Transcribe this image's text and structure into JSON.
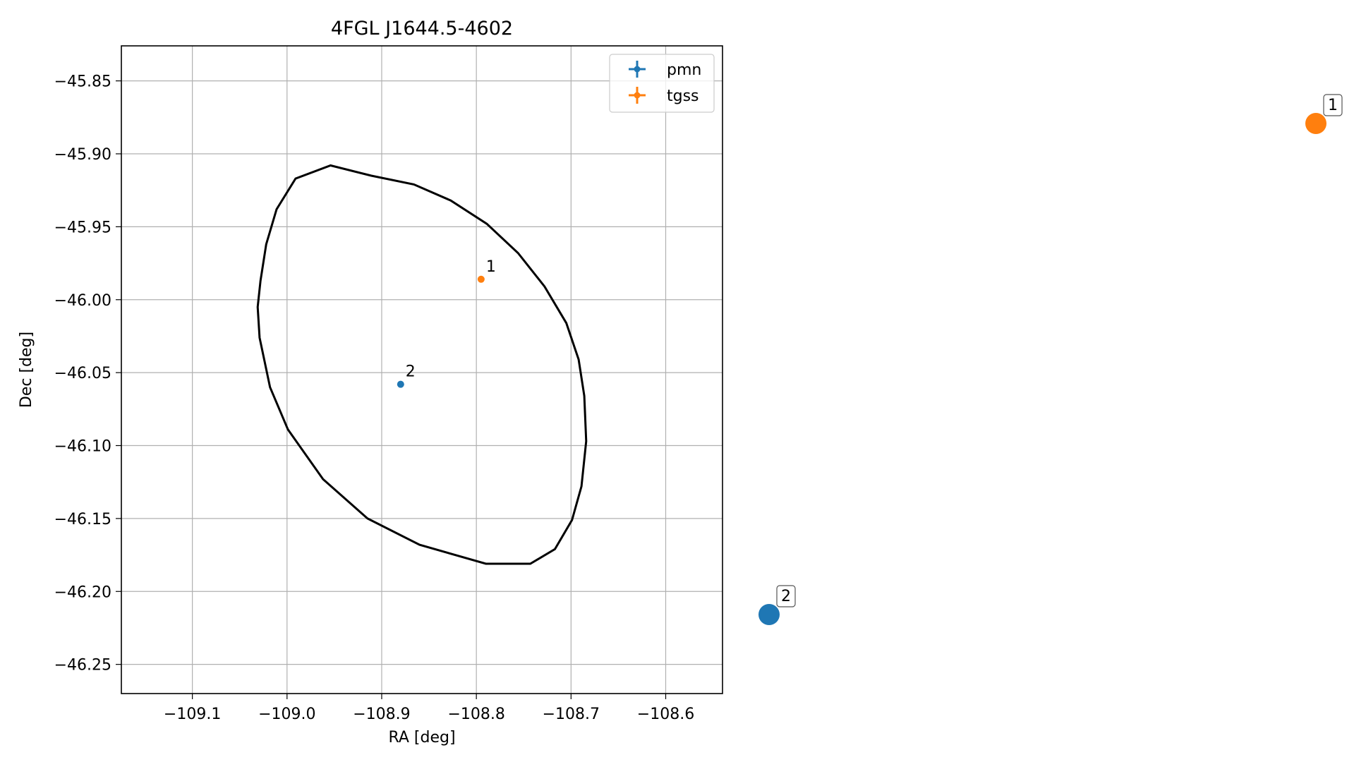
{
  "chart_data": {
    "type": "scatter",
    "title": "4FGL J1644.5-4602",
    "xlabel": "RA [deg]",
    "ylabel": "Dec [deg]",
    "xlim": [
      -109.175,
      -108.54
    ],
    "ylim": [
      -46.27,
      -45.826
    ],
    "xticks": [
      -109.1,
      -109.0,
      -108.9,
      -108.8,
      -108.7,
      -108.6
    ],
    "xtick_labels": [
      "−109.1",
      "−109.0",
      "−108.9",
      "−108.8",
      "−108.7",
      "−108.6"
    ],
    "yticks": [
      -45.85,
      -45.9,
      -45.95,
      -46.0,
      -46.05,
      -46.1,
      -46.15,
      -46.2,
      -46.25
    ],
    "ytick_labels": [
      "−45.85",
      "−45.90",
      "−45.95",
      "−46.00",
      "−46.05",
      "−46.10",
      "−46.15",
      "−46.20",
      "−46.25"
    ],
    "grid": true,
    "legend_position": "top-right",
    "series": [
      {
        "name": "pmn",
        "color": "#1f77b4",
        "points": [
          {
            "x": -108.88,
            "y": -46.058,
            "label": "2"
          }
        ]
      },
      {
        "name": "tgss",
        "color": "#ff7f0e",
        "points": [
          {
            "x": -108.795,
            "y": -45.986,
            "label": "1"
          }
        ]
      }
    ],
    "ellipse": {
      "color": "#000000",
      "points": [
        [
          -108.911,
          -45.915
        ],
        [
          -108.866,
          -45.921
        ],
        [
          -108.827,
          -45.932
        ],
        [
          -108.789,
          -45.948
        ],
        [
          -108.756,
          -45.968
        ],
        [
          -108.728,
          -45.991
        ],
        [
          -108.705,
          -46.016
        ],
        [
          -108.692,
          -46.041
        ],
        [
          -108.686,
          -46.066
        ],
        [
          -108.684,
          -46.097
        ],
        [
          -108.689,
          -46.128
        ],
        [
          -108.699,
          -46.151
        ],
        [
          -108.717,
          -46.171
        ],
        [
          -108.743,
          -46.181
        ],
        [
          -108.79,
          -46.181
        ],
        [
          -108.86,
          -46.168
        ],
        [
          -108.915,
          -46.15
        ],
        [
          -108.962,
          -46.123
        ],
        [
          -108.999,
          -46.089
        ],
        [
          -109.018,
          -46.06
        ],
        [
          -109.029,
          -46.026
        ],
        [
          -109.031,
          -46.005
        ],
        [
          -109.028,
          -45.987
        ],
        [
          -109.022,
          -45.962
        ],
        [
          -109.011,
          -45.938
        ],
        [
          -108.991,
          -45.917
        ],
        [
          -108.954,
          -45.908
        ],
        [
          -108.911,
          -45.915
        ]
      ]
    }
  },
  "side_markers": [
    {
      "label": "1",
      "color": "#ff7f0e"
    },
    {
      "label": "2",
      "color": "#1f77b4"
    }
  ]
}
